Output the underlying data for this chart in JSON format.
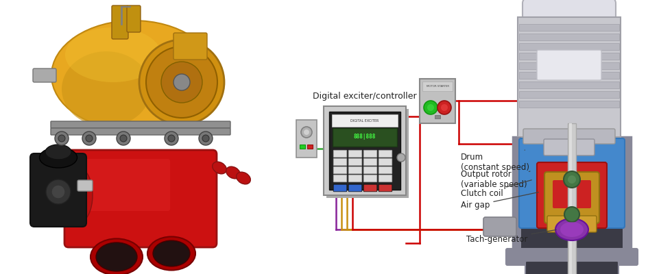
{
  "bg_color": "#ffffff",
  "label_color": "#222222",
  "labels": {
    "digital_exciter": "Digital exciter/controller",
    "drum": "Drum\n(constant speed)",
    "output_rotor": "Output rotor\n(variable speed)",
    "clutch_coil": "Clutch coil",
    "air_gap": "Air gap",
    "tach_generator": "Tach-generator"
  },
  "wire_colors": {
    "red": "#cc0000",
    "green": "#33aa33",
    "gold": "#c89010",
    "gold2": "#b07c00",
    "purple": "#882299",
    "purple2": "#771188"
  },
  "cc": {
    "motor_body": "#c8c8ce",
    "motor_fin": "#b8b8c0",
    "motor_cap": "#d8d8e0",
    "motor_cap2": "#e0e0e8",
    "coupling_housing": "#3a3a45",
    "coupling_rim": "#888898",
    "blue": "#4488cc",
    "blue2": "#3377bb",
    "red_rotor": "#cc2222",
    "gold_coil": "#c09020",
    "gold_coil2": "#d0a030",
    "green_ring": "#447744",
    "purple_tach": "#8833aa",
    "shaft": "#aaaaaa",
    "shaft2": "#cccccc",
    "base_gray": "#888898",
    "box_gray": "#c0c0c0",
    "box_face": "#cccccc",
    "panel_dark": "#2a2a2a",
    "lcd_green": "#2a5522",
    "turbine_yellow": "#e8a820",
    "turbine_dark": "#c08810",
    "engine_red": "#cc1111",
    "engine_black": "#1a1a1a",
    "starter_gray": "#c0c0c0"
  },
  "figsize": [
    9.8,
    4.0
  ],
  "dpi": 100
}
